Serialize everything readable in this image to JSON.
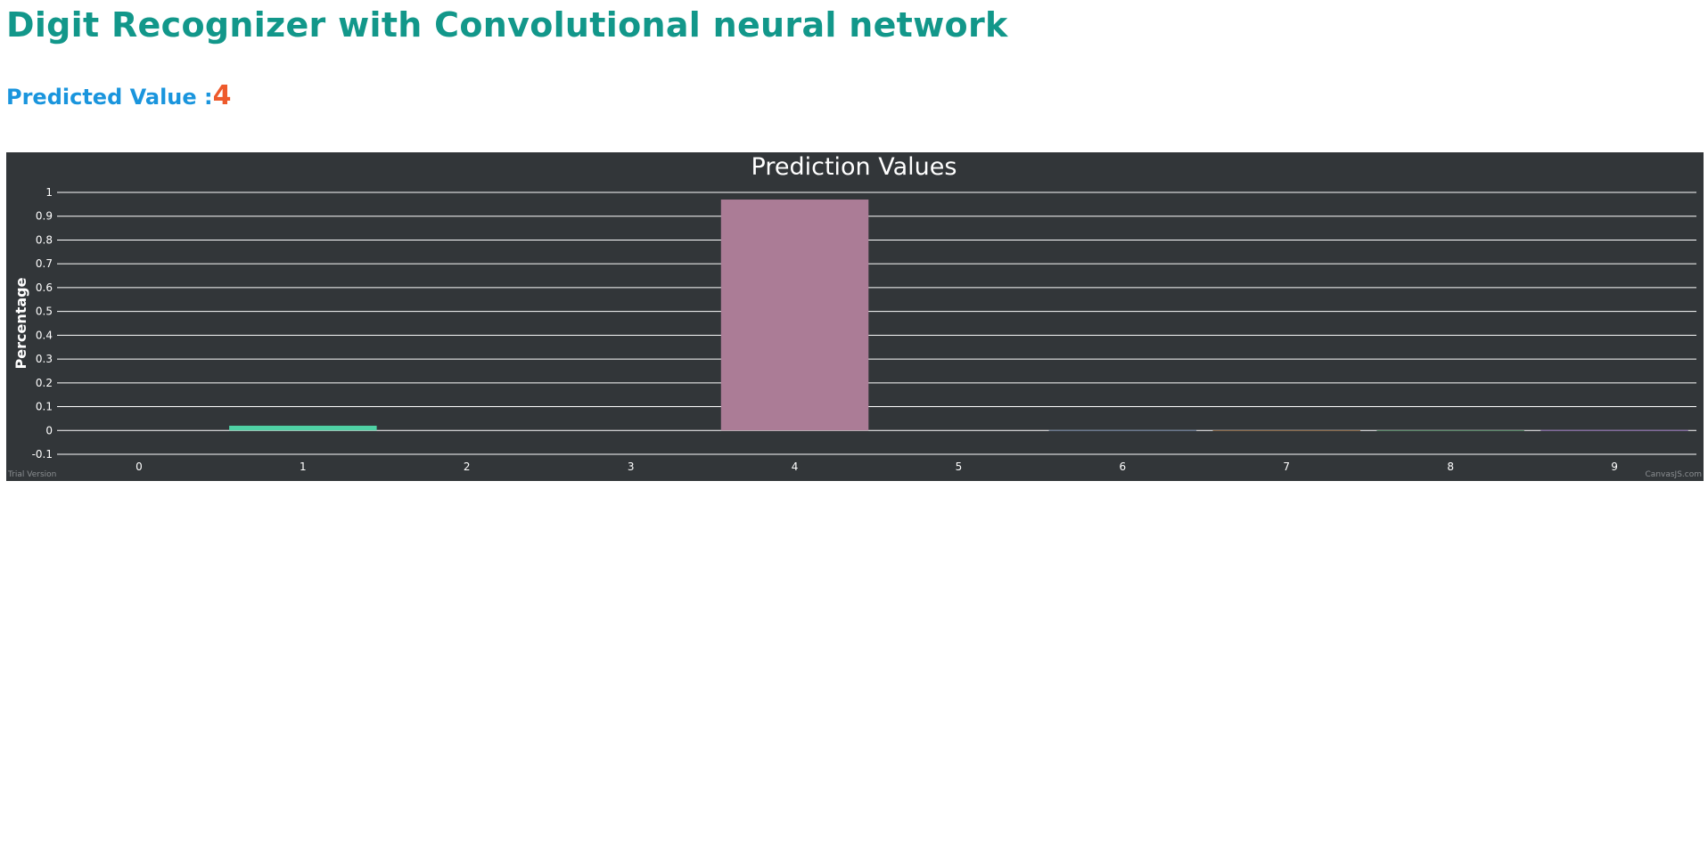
{
  "header": {
    "title": "Digit Recognizer with Convolutional neural network"
  },
  "prediction": {
    "label": "Predicted Value :",
    "value": "4"
  },
  "colors": {
    "title": "#12978a",
    "label": "#1a95dd",
    "value": "#ee5a2c",
    "chart_background": "#323639",
    "grid": "#ffffff"
  },
  "chart_data": {
    "type": "bar",
    "title": "Prediction Values",
    "xlabel": "",
    "ylabel": "Percentage",
    "ylim": [
      -0.1,
      1
    ],
    "yticks": [
      "1",
      "0.9",
      "0.8",
      "0.7",
      "0.6",
      "0.5",
      "0.4",
      "0.3",
      "0.2",
      "0.1",
      "0",
      "-0.1"
    ],
    "categories": [
      "0",
      "1",
      "2",
      "3",
      "4",
      "5",
      "6",
      "7",
      "8",
      "9"
    ],
    "values": [
      0.0,
      0.02,
      0.0,
      0.0,
      0.97,
      0.0,
      0.002,
      0.001,
      0.001,
      0.002
    ],
    "bar_colors": [
      "#4a8bbf",
      "#4fd1a4",
      "#7fc2d8",
      "#c9a64b",
      "#ab7c96",
      "#d36a5a",
      "#5b6c8a",
      "#8a6a4a",
      "#5a8a6a",
      "#7a5aa0"
    ],
    "grid": true,
    "watermark_left": "Trial Version",
    "watermark_right": "CanvasJS.com"
  }
}
